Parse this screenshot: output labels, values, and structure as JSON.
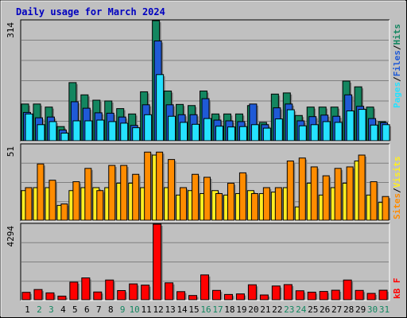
{
  "chart_data": [
    {
      "type": "bar",
      "title": "Daily usage for March 2024",
      "panel": "hits-files-pages",
      "ylim": [
        0,
        314
      ],
      "ytick_label": "314",
      "grid": true,
      "categories": [
        1,
        2,
        3,
        4,
        5,
        6,
        7,
        8,
        9,
        10,
        11,
        12,
        13,
        14,
        15,
        16,
        17,
        18,
        19,
        20,
        21,
        22,
        23,
        24,
        25,
        26,
        27,
        28,
        29,
        30,
        31
      ],
      "legend_label": "Hits",
      "legend_separator": "/",
      "legend_files": "Files",
      "legend_pages": "Pages",
      "series": [
        {
          "name": "Hits",
          "color": "#138660",
          "values": [
            96,
            96,
            88,
            37,
            152,
            120,
            106,
            104,
            84,
            70,
            128,
            314,
            130,
            95,
            92,
            130,
            70,
            70,
            70,
            92,
            48,
            122,
            125,
            66,
            88,
            88,
            88,
            156,
            141,
            88,
            50
          ]
        },
        {
          "name": "Files",
          "color": "#1f5ad6",
          "values": [
            74,
            60,
            62,
            28,
            102,
            85,
            73,
            72,
            62,
            40,
            94,
            261,
            94,
            68,
            68,
            110,
            54,
            52,
            50,
            96,
            42,
            86,
            96,
            52,
            63,
            67,
            64,
            120,
            90,
            58,
            47
          ]
        },
        {
          "name": "Pages",
          "color": "#25e1ff",
          "values": [
            70,
            42,
            50,
            20,
            52,
            52,
            54,
            50,
            46,
            34,
            68,
            173,
            64,
            48,
            43,
            58,
            38,
            36,
            37,
            42,
            33,
            57,
            81,
            39,
            42,
            50,
            48,
            78,
            82,
            41,
            42
          ]
        }
      ]
    },
    {
      "type": "bar",
      "panel": "visits-sites",
      "ylim": [
        0,
        51
      ],
      "ytick_label": "51",
      "grid": true,
      "categories": [
        1,
        2,
        3,
        4,
        5,
        6,
        7,
        8,
        9,
        10,
        11,
        12,
        13,
        14,
        15,
        16,
        17,
        18,
        19,
        20,
        21,
        22,
        23,
        24,
        25,
        26,
        27,
        28,
        29,
        30,
        31
      ],
      "legend_label": "Visits",
      "legend_separator": "/",
      "legend_sites": "Sites",
      "series": [
        {
          "name": "Visits",
          "color": "#ffee22",
          "values": [
            20,
            22,
            22,
            10,
            20,
            22,
            22,
            22,
            25,
            25,
            22,
            44,
            22,
            17,
            20,
            18,
            20,
            17,
            18,
            20,
            18,
            19,
            22,
            9,
            25,
            17,
            22,
            25,
            40,
            17,
            12
          ]
        },
        {
          "name": "Sites",
          "color": "#ff8c00",
          "values": [
            22,
            38,
            27,
            11,
            26,
            35,
            20,
            37,
            37,
            31,
            46,
            46,
            41,
            22,
            31,
            29,
            18,
            25,
            32,
            18,
            22,
            22,
            40,
            42,
            36,
            30,
            35,
            36,
            44,
            26,
            16
          ]
        }
      ]
    },
    {
      "type": "bar",
      "panel": "kbytes",
      "ylim": [
        0,
        4294
      ],
      "ytick_label": "4294",
      "grid": true,
      "categories": [
        1,
        2,
        3,
        4,
        5,
        6,
        7,
        8,
        9,
        10,
        11,
        12,
        13,
        14,
        15,
        16,
        17,
        18,
        19,
        20,
        21,
        22,
        23,
        24,
        25,
        26,
        27,
        28,
        29,
        30,
        31
      ],
      "legend_label": "kB F",
      "series": [
        {
          "name": "kB F",
          "color": "#ff0000",
          "values": [
            420,
            580,
            390,
            205,
            1000,
            1240,
            440,
            1120,
            520,
            900,
            830,
            4294,
            960,
            460,
            240,
            1410,
            530,
            300,
            330,
            850,
            270,
            780,
            860,
            510,
            430,
            470,
            540,
            1120,
            530,
            360,
            540
          ]
        }
      ]
    }
  ]
}
